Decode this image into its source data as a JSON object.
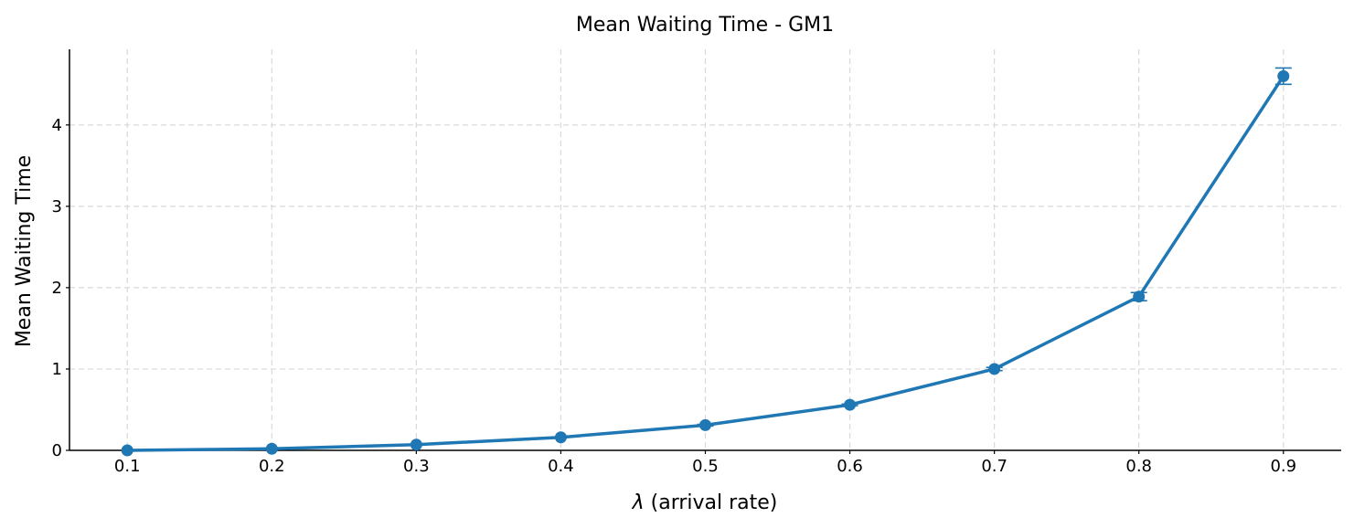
{
  "chart_data": {
    "type": "line",
    "title": "Mean Waiting Time - GM1",
    "xlabel_symbol": "λ",
    "xlabel_rest": " (arrival rate)",
    "ylabel": "Mean Waiting Time",
    "x": [
      0.1,
      0.2,
      0.3,
      0.4,
      0.5,
      0.6,
      0.7,
      0.8,
      0.9
    ],
    "x_tick_labels": [
      "0.1",
      "0.2",
      "0.3",
      "0.4",
      "0.5",
      "0.6",
      "0.7",
      "0.8",
      "0.9"
    ],
    "xlim": [
      0.06,
      0.94
    ],
    "y_ticks": [
      0,
      1,
      2,
      3,
      4
    ],
    "y_tick_labels": [
      "0",
      "1",
      "2",
      "3",
      "4"
    ],
    "ylim": [
      0,
      4.93
    ],
    "grid": true,
    "series": [
      {
        "color": "#1f77b4",
        "values": [
          0.0,
          0.02,
          0.07,
          0.16,
          0.31,
          0.56,
          1.0,
          1.89,
          4.6
        ],
        "error": [
          0.0,
          0.0,
          0.0,
          0.0,
          0.01,
          0.01,
          0.02,
          0.05,
          0.1
        ]
      }
    ]
  }
}
